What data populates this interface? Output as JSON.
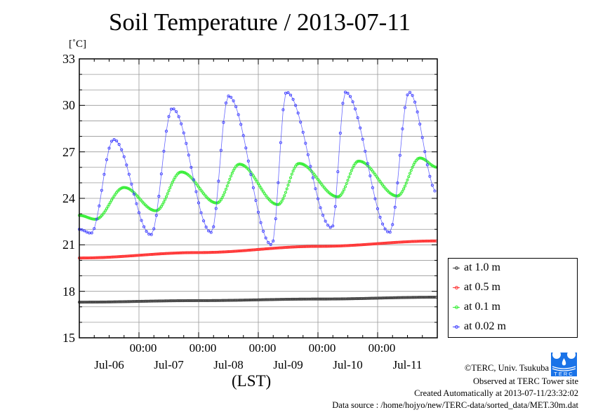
{
  "chart_data": {
    "type": "line",
    "title": "Soil Temperature / 2013-07-11",
    "ylabel": "[˚C]",
    "xlabel": "(LST)",
    "ylim": [
      15,
      33
    ],
    "yticks": [
      "15",
      "18",
      "21",
      "24",
      "27",
      "30",
      "33"
    ],
    "xlim_hours_from_Jul06_0000": [
      0,
      144
    ],
    "xtick_time_labels": [
      "00:00",
      "00:00",
      "00:00",
      "00:00",
      "00:00"
    ],
    "xtick_date_labels": [
      "Jul-06",
      "Jul-07",
      "Jul-08",
      "Jul-09",
      "Jul-10",
      "Jul-11"
    ],
    "grid": true,
    "legend_position": "right, outside lower",
    "x_unit": "hours since 2013-07-06 00:00 LST",
    "series": [
      {
        "name": "at 1.0 m",
        "color": "#444444",
        "step_hours": 0.5,
        "points": [
          [
            0,
            17.3
          ],
          [
            48,
            17.4
          ],
          [
            96,
            17.5
          ],
          [
            144,
            17.62
          ]
        ]
      },
      {
        "name": "at 0.5 m",
        "color": "#ff3333",
        "step_hours": 0.5,
        "points": [
          [
            0,
            20.15
          ],
          [
            48,
            20.5
          ],
          [
            96,
            20.9
          ],
          [
            144,
            21.25
          ]
        ]
      },
      {
        "name": "at 0.1 m",
        "color": "#33ee33",
        "step_hours": 0.5,
        "points": [
          [
            0,
            22.9
          ],
          [
            6.5,
            22.65
          ],
          [
            18,
            24.7
          ],
          [
            30.8,
            23.2
          ],
          [
            41,
            25.7
          ],
          [
            55.3,
            23.7
          ],
          [
            64.4,
            26.2
          ],
          [
            79.9,
            23.6
          ],
          [
            88.4,
            26.25
          ],
          [
            104,
            24.1
          ],
          [
            112.4,
            26.4
          ],
          [
            127.9,
            24.15
          ],
          [
            137,
            26.6
          ],
          [
            144,
            26.0
          ]
        ]
      },
      {
        "name": "at 0.02 m",
        "color": "#4444ff",
        "step_hours": 1,
        "points": [
          [
            0,
            22.0
          ],
          [
            4.7,
            21.75
          ],
          [
            13.8,
            27.8
          ],
          [
            28.8,
            21.65
          ],
          [
            37.4,
            29.8
          ],
          [
            53.1,
            21.8
          ],
          [
            60,
            30.6
          ],
          [
            77.4,
            21.0
          ],
          [
            83.3,
            30.85
          ],
          [
            101.6,
            22.1
          ],
          [
            107,
            30.85
          ],
          [
            124.8,
            21.8
          ],
          [
            132.7,
            30.85
          ],
          [
            144,
            24.35
          ]
        ]
      }
    ]
  },
  "credits": {
    "copyright": "©TERC, Univ. Tsukuba",
    "site": "Observed at TERC Tower site",
    "created": "Created Automatically at 2013-07-11/23:32:02",
    "source": "Data source : /home/hojyo/new/TERC-data/sorted_data/MET.30m.dat",
    "logo_text": "TERC"
  }
}
